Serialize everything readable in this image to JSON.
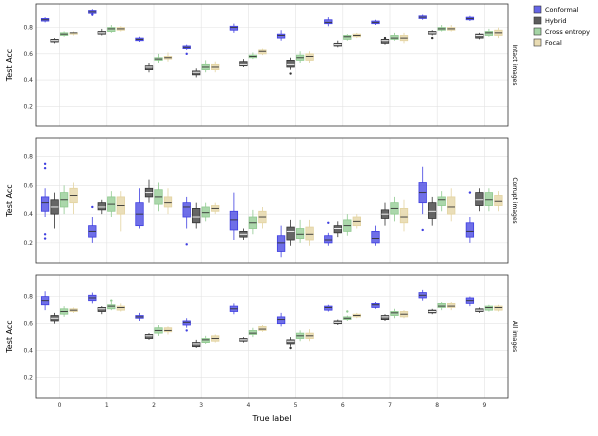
{
  "chart_data": {
    "type": "box",
    "xlabel": "True label",
    "ylabel": "Test Acc",
    "categories": [
      "0",
      "1",
      "2",
      "3",
      "4",
      "5",
      "6",
      "7",
      "8",
      "9"
    ],
    "series": [
      {
        "name": "Conformal",
        "color": "#3f3fe0"
      },
      {
        "name": "Hybrid",
        "color": "#333333"
      },
      {
        "name": "Cross entropy",
        "color": "#8fc98f"
      },
      {
        "name": "Focal",
        "color": "#e3d3a0"
      }
    ],
    "panels": [
      {
        "label": "Intact images",
        "ylim": [
          0.05,
          0.98
        ],
        "yticks": [
          "0.2",
          "0.4",
          "0.6",
          "0.8"
        ],
        "yvalues": [
          0.2,
          0.4,
          0.6,
          0.8
        ],
        "boxes": [
          [
            [
              0.84,
              0.85,
              0.86,
              0.87,
              0.88
            ],
            [
              0.68,
              0.69,
              0.7,
              0.71,
              0.72
            ],
            [
              0.73,
              0.74,
              0.75,
              0.76,
              0.77
            ],
            [
              0.74,
              0.75,
              0.76,
              0.76,
              0.77
            ]
          ],
          [
            [
              0.89,
              0.91,
              0.92,
              0.93,
              0.94
            ],
            [
              0.74,
              0.75,
              0.76,
              0.77,
              0.79
            ],
            [
              0.76,
              0.77,
              0.79,
              0.8,
              0.82
            ],
            [
              0.77,
              0.78,
              0.79,
              0.8,
              0.81
            ]
          ],
          [
            [
              0.69,
              0.7,
              0.71,
              0.72,
              0.73
            ],
            [
              0.46,
              0.48,
              0.5,
              0.51,
              0.53
            ],
            [
              0.53,
              0.55,
              0.56,
              0.57,
              0.6
            ],
            [
              0.54,
              0.56,
              0.57,
              0.58,
              0.61
            ]
          ],
          [
            [
              0.63,
              0.64,
              0.65,
              0.66,
              0.67
            ],
            [
              0.42,
              0.44,
              0.46,
              0.47,
              0.49
            ],
            [
              0.46,
              0.48,
              0.5,
              0.52,
              0.55
            ],
            [
              0.46,
              0.48,
              0.5,
              0.52,
              0.54
            ]
          ],
          [
            [
              0.76,
              0.78,
              0.8,
              0.81,
              0.83
            ],
            [
              0.5,
              0.51,
              0.52,
              0.54,
              0.56
            ],
            [
              0.56,
              0.57,
              0.58,
              0.59,
              0.61
            ],
            [
              0.59,
              0.6,
              0.62,
              0.63,
              0.64
            ]
          ],
          [
            [
              0.7,
              0.72,
              0.74,
              0.75,
              0.78
            ],
            [
              0.48,
              0.5,
              0.52,
              0.55,
              0.57
            ],
            [
              0.53,
              0.55,
              0.57,
              0.59,
              0.62
            ],
            [
              0.53,
              0.55,
              0.58,
              0.6,
              0.62
            ]
          ],
          [
            [
              0.81,
              0.83,
              0.84,
              0.86,
              0.88
            ],
            [
              0.65,
              0.66,
              0.67,
              0.68,
              0.7
            ],
            [
              0.7,
              0.71,
              0.73,
              0.74,
              0.75
            ],
            [
              0.72,
              0.73,
              0.74,
              0.75,
              0.76
            ]
          ],
          [
            [
              0.82,
              0.83,
              0.84,
              0.85,
              0.86
            ],
            [
              0.67,
              0.68,
              0.7,
              0.71,
              0.72
            ],
            [
              0.7,
              0.71,
              0.72,
              0.74,
              0.76
            ],
            [
              0.68,
              0.7,
              0.72,
              0.74,
              0.76
            ]
          ],
          [
            [
              0.86,
              0.87,
              0.88,
              0.89,
              0.9
            ],
            [
              0.74,
              0.75,
              0.76,
              0.77,
              0.78
            ],
            [
              0.77,
              0.78,
              0.79,
              0.8,
              0.82
            ],
            [
              0.77,
              0.78,
              0.79,
              0.8,
              0.82
            ]
          ],
          [
            [
              0.85,
              0.86,
              0.87,
              0.88,
              0.89
            ],
            [
              0.71,
              0.72,
              0.74,
              0.75,
              0.76
            ],
            [
              0.73,
              0.74,
              0.76,
              0.77,
              0.79
            ],
            [
              0.72,
              0.74,
              0.76,
              0.78,
              0.8
            ]
          ]
        ],
        "outliers": [
          [
            1,
            0,
            0.9
          ],
          [
            3,
            0,
            0.6
          ],
          [
            5,
            1,
            0.45
          ],
          [
            7,
            1,
            0.72
          ],
          [
            8,
            1,
            0.72
          ]
        ]
      },
      {
        "label": "Corrupt images",
        "ylim": [
          0.06,
          0.93
        ],
        "yticks": [
          "0.2",
          "0.4",
          "0.6",
          "0.8"
        ],
        "yvalues": [
          0.2,
          0.4,
          0.6,
          0.8
        ],
        "boxes": [
          [
            [
              0.38,
              0.42,
              0.48,
              0.52,
              0.58
            ],
            [
              0.3,
              0.4,
              0.45,
              0.5,
              0.55
            ],
            [
              0.4,
              0.45,
              0.5,
              0.55,
              0.6
            ],
            [
              0.4,
              0.48,
              0.53,
              0.58,
              0.62
            ]
          ],
          [
            [
              0.2,
              0.24,
              0.28,
              0.32,
              0.38
            ],
            [
              0.4,
              0.43,
              0.45,
              0.48,
              0.5
            ],
            [
              0.38,
              0.42,
              0.47,
              0.52,
              0.56
            ],
            [
              0.28,
              0.4,
              0.46,
              0.52,
              0.56
            ]
          ],
          [
            [
              0.3,
              0.32,
              0.4,
              0.48,
              0.58
            ],
            [
              0.48,
              0.52,
              0.55,
              0.58,
              0.64
            ],
            [
              0.42,
              0.47,
              0.52,
              0.57,
              0.62
            ],
            [
              0.4,
              0.45,
              0.48,
              0.52,
              0.58
            ]
          ],
          [
            [
              0.3,
              0.38,
              0.45,
              0.48,
              0.52
            ],
            [
              0.3,
              0.34,
              0.38,
              0.44,
              0.48
            ],
            [
              0.35,
              0.38,
              0.41,
              0.45,
              0.48
            ],
            [
              0.4,
              0.42,
              0.44,
              0.46,
              0.48
            ]
          ],
          [
            [
              0.22,
              0.29,
              0.36,
              0.42,
              0.55
            ],
            [
              0.22,
              0.24,
              0.26,
              0.28,
              0.3
            ],
            [
              0.26,
              0.3,
              0.34,
              0.38,
              0.43
            ],
            [
              0.3,
              0.34,
              0.38,
              0.42,
              0.45
            ]
          ],
          [
            [
              0.1,
              0.14,
              0.2,
              0.25,
              0.32
            ],
            [
              0.18,
              0.22,
              0.28,
              0.31,
              0.36
            ],
            [
              0.2,
              0.23,
              0.26,
              0.3,
              0.36
            ],
            [
              0.18,
              0.22,
              0.26,
              0.31,
              0.36
            ]
          ],
          [
            [
              0.18,
              0.2,
              0.22,
              0.25,
              0.27
            ],
            [
              0.24,
              0.27,
              0.3,
              0.32,
              0.35
            ],
            [
              0.25,
              0.28,
              0.32,
              0.36,
              0.4
            ],
            [
              0.3,
              0.32,
              0.35,
              0.38,
              0.4
            ]
          ],
          [
            [
              0.18,
              0.2,
              0.23,
              0.28,
              0.32
            ],
            [
              0.32,
              0.37,
              0.4,
              0.43,
              0.48
            ],
            [
              0.35,
              0.4,
              0.44,
              0.48,
              0.52
            ],
            [
              0.28,
              0.34,
              0.38,
              0.44,
              0.5
            ]
          ],
          [
            [
              0.4,
              0.48,
              0.55,
              0.62,
              0.73
            ],
            [
              0.32,
              0.37,
              0.42,
              0.48,
              0.52
            ],
            [
              0.42,
              0.46,
              0.5,
              0.52,
              0.56
            ],
            [
              0.35,
              0.4,
              0.45,
              0.52,
              0.58
            ]
          ],
          [
            [
              0.2,
              0.24,
              0.28,
              0.34,
              0.38
            ],
            [
              0.42,
              0.46,
              0.5,
              0.55,
              0.58
            ],
            [
              0.42,
              0.46,
              0.5,
              0.55,
              0.58
            ],
            [
              0.42,
              0.46,
              0.49,
              0.53,
              0.56
            ]
          ]
        ],
        "outliers": [
          [
            0,
            0,
            0.75
          ],
          [
            0,
            0,
            0.72
          ],
          [
            0,
            0,
            0.26
          ],
          [
            0,
            0,
            0.23
          ],
          [
            1,
            0,
            0.45
          ],
          [
            3,
            0,
            0.19
          ],
          [
            6,
            0,
            0.34
          ],
          [
            8,
            0,
            0.29
          ],
          [
            9,
            0,
            0.55
          ]
        ]
      },
      {
        "label": "All images",
        "ylim": [
          0.05,
          0.96
        ],
        "yticks": [
          "0.2",
          "0.4",
          "0.6",
          "0.8"
        ],
        "yvalues": [
          0.2,
          0.4,
          0.6,
          0.8
        ],
        "boxes": [
          [
            [
              0.7,
              0.74,
              0.77,
              0.8,
              0.84
            ],
            [
              0.6,
              0.62,
              0.64,
              0.66,
              0.68
            ],
            [
              0.65,
              0.67,
              0.69,
              0.71,
              0.73
            ],
            [
              0.68,
              0.69,
              0.7,
              0.71,
              0.72
            ]
          ],
          [
            [
              0.75,
              0.77,
              0.79,
              0.81,
              0.83
            ],
            [
              0.67,
              0.69,
              0.71,
              0.72,
              0.73
            ],
            [
              0.7,
              0.71,
              0.73,
              0.74,
              0.76
            ],
            [
              0.69,
              0.7,
              0.72,
              0.73,
              0.75
            ]
          ],
          [
            [
              0.62,
              0.64,
              0.65,
              0.66,
              0.68
            ],
            [
              0.48,
              0.49,
              0.51,
              0.52,
              0.53
            ],
            [
              0.51,
              0.53,
              0.55,
              0.57,
              0.59
            ],
            [
              0.52,
              0.54,
              0.55,
              0.57,
              0.58
            ]
          ],
          [
            [
              0.57,
              0.59,
              0.61,
              0.62,
              0.64
            ],
            [
              0.42,
              0.43,
              0.45,
              0.46,
              0.48
            ],
            [
              0.45,
              0.46,
              0.48,
              0.49,
              0.51
            ],
            [
              0.46,
              0.47,
              0.49,
              0.51,
              0.52
            ]
          ],
          [
            [
              0.67,
              0.69,
              0.71,
              0.73,
              0.75
            ],
            [
              0.46,
              0.47,
              0.48,
              0.49,
              0.5
            ],
            [
              0.5,
              0.52,
              0.53,
              0.55,
              0.57
            ],
            [
              0.54,
              0.55,
              0.56,
              0.58,
              0.59
            ]
          ],
          [
            [
              0.58,
              0.6,
              0.63,
              0.65,
              0.68
            ],
            [
              0.43,
              0.45,
              0.47,
              0.48,
              0.5
            ],
            [
              0.47,
              0.49,
              0.51,
              0.53,
              0.55
            ],
            [
              0.47,
              0.49,
              0.51,
              0.53,
              0.56
            ]
          ],
          [
            [
              0.69,
              0.7,
              0.72,
              0.73,
              0.74
            ],
            [
              0.59,
              0.6,
              0.61,
              0.62,
              0.63
            ],
            [
              0.62,
              0.63,
              0.64,
              0.65,
              0.66
            ],
            [
              0.64,
              0.65,
              0.66,
              0.67,
              0.68
            ]
          ],
          [
            [
              0.71,
              0.72,
              0.74,
              0.75,
              0.76
            ],
            [
              0.62,
              0.63,
              0.65,
              0.66,
              0.67
            ],
            [
              0.64,
              0.66,
              0.68,
              0.69,
              0.71
            ],
            [
              0.64,
              0.65,
              0.67,
              0.69,
              0.7
            ]
          ],
          [
            [
              0.77,
              0.79,
              0.81,
              0.83,
              0.85
            ],
            [
              0.67,
              0.68,
              0.69,
              0.7,
              0.71
            ],
            [
              0.7,
              0.72,
              0.73,
              0.75,
              0.76
            ],
            [
              0.7,
              0.72,
              0.73,
              0.75,
              0.76
            ]
          ],
          [
            [
              0.73,
              0.75,
              0.77,
              0.79,
              0.8
            ],
            [
              0.68,
              0.69,
              0.7,
              0.71,
              0.72
            ],
            [
              0.69,
              0.7,
              0.72,
              0.73,
              0.74
            ],
            [
              0.69,
              0.7,
              0.72,
              0.73,
              0.74
            ]
          ]
        ],
        "outliers": [
          [
            3,
            0,
            0.55
          ],
          [
            5,
            1,
            0.42
          ],
          [
            6,
            2,
            0.69
          ],
          [
            1,
            2,
            0.77
          ]
        ]
      }
    ]
  }
}
